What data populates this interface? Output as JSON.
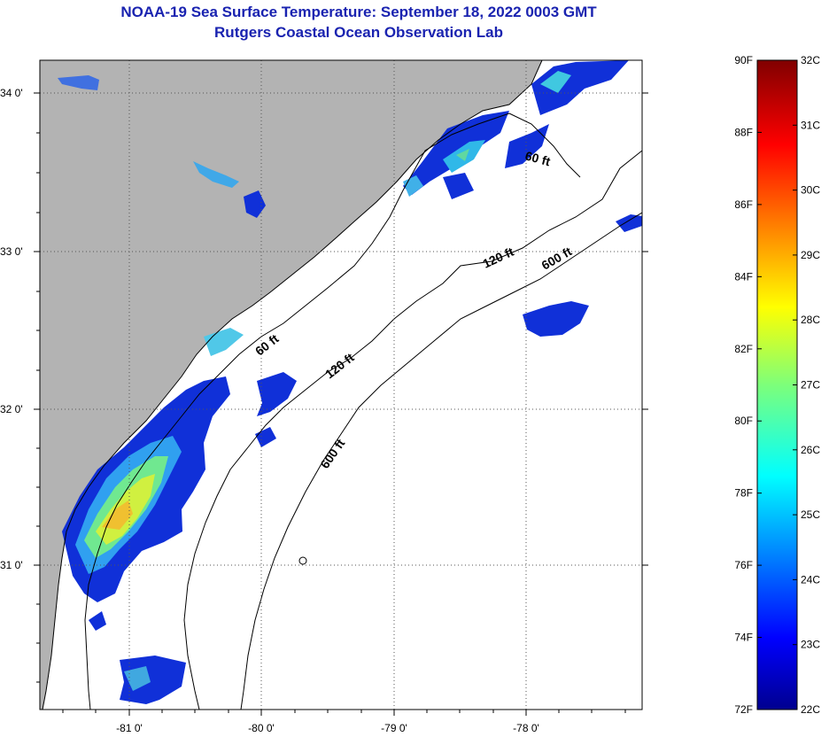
{
  "header": {
    "title": "NOAA-19 Sea Surface Temperature:  September 18, 2022 0003 GMT",
    "subtitle": "Rutgers Coastal Ocean Observation Lab"
  },
  "map": {
    "latitude_labels": [
      "34 0'",
      "33 0'",
      "32 0'",
      "31 0'"
    ],
    "longitude_labels": [
      "-81 0'",
      "-80 0'",
      "-79 0'",
      "-78 0'"
    ],
    "contour_labels": [
      "60 ft",
      "120 ft",
      "600 ft",
      "60 ft",
      "120 ft",
      "600 ft"
    ],
    "colors": {
      "land": "#b3b3b3",
      "ocean": "#ffffff",
      "grid": "#555555"
    }
  },
  "colorbar": {
    "fahrenheit_labels": [
      "90F",
      "88F",
      "86F",
      "84F",
      "82F",
      "80F",
      "78F",
      "76F",
      "74F",
      "72F"
    ],
    "celsius_labels": [
      "32C",
      "31C",
      "30C",
      "29C",
      "28C",
      "27C",
      "26C",
      "25C",
      "24C",
      "23C",
      "22C"
    ],
    "range_f": [
      72,
      90
    ],
    "range_c": [
      22,
      32
    ]
  }
}
